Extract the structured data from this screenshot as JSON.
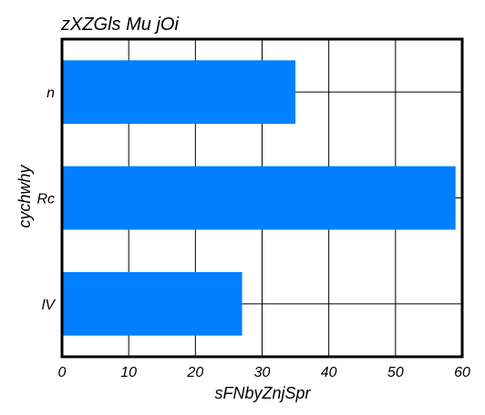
{
  "chart_data": {
    "type": "bar",
    "orientation": "horizontal",
    "title": "zXZGls Mu jOi",
    "xlabel": "sFNbyZnjSpr",
    "ylabel": "cychwhy",
    "categories": [
      "n",
      "Rc",
      "lV"
    ],
    "values": [
      35,
      59,
      27
    ],
    "xlim": [
      0,
      60
    ],
    "xticks": [
      "0",
      "10",
      "20",
      "30",
      "40",
      "50",
      "60"
    ],
    "grid": true,
    "legend": "none",
    "bar_color": "#0080ff"
  }
}
